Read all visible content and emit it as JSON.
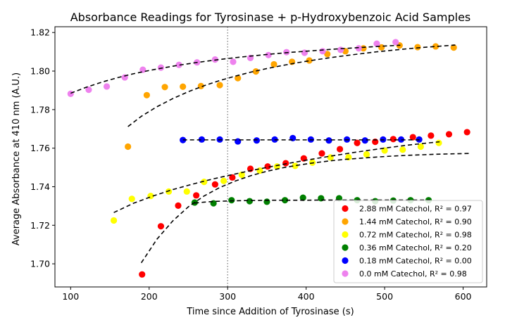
{
  "chart_data": {
    "type": "scatter",
    "title": "Absorbance Readings for Tyrosinase + p-Hydroxybenzoic Acid Samples",
    "xlabel": "Time since Addition of Tyrosinase (s)",
    "ylabel": "Average Absorbance at 410 nm (A.U.)",
    "xlim": [
      80,
      630
    ],
    "ylim": [
      1.688,
      1.823
    ],
    "xticks": [
      100,
      200,
      300,
      400,
      500,
      600
    ],
    "yticks": [
      1.7,
      1.72,
      1.74,
      1.76,
      1.78,
      1.8,
      1.82
    ],
    "xtick_labels": [
      "100",
      "200",
      "300",
      "400",
      "500",
      "600"
    ],
    "ytick_labels": [
      "1.70",
      "1.72",
      "1.74",
      "1.76",
      "1.78",
      "1.80",
      "1.82"
    ],
    "reference_line": {
      "x": 300,
      "style": "dotted",
      "color": "#7f7f7f"
    },
    "fit_style": {
      "color": "#000000",
      "dash": "dashed"
    },
    "legend_position": "lower right",
    "grid": false,
    "series": [
      {
        "name": "2.88 mM Catechol, R² = 0.97",
        "color": "#ff0000",
        "x": [
          191,
          215,
          237,
          260,
          284,
          306,
          329,
          351,
          374,
          397,
          420,
          443,
          465,
          488,
          511,
          536,
          559,
          582,
          605
        ],
        "y": [
          1.6945,
          1.7195,
          1.7302,
          1.7355,
          1.7412,
          1.7448,
          1.7493,
          1.7505,
          1.7522,
          1.7547,
          1.7573,
          1.7595,
          1.7627,
          1.7633,
          1.7647,
          1.7657,
          1.7665,
          1.7672,
          1.7683
        ],
        "fit": {
          "x": [
            190,
            210,
            230,
            250,
            270,
            290,
            310,
            330,
            350,
            370,
            390,
            410,
            430,
            450,
            470,
            490,
            510,
            530,
            550,
            570,
            590,
            610
          ],
          "y": [
            1.7005,
            1.7128,
            1.7222,
            1.7296,
            1.7352,
            1.7396,
            1.743,
            1.7458,
            1.748,
            1.7498,
            1.7512,
            1.7524,
            1.7534,
            1.7542,
            1.7548,
            1.7554,
            1.7559,
            1.7563,
            1.7566,
            1.7569,
            1.7571,
            1.7573
          ]
        }
      },
      {
        "name": "1.44 mM Catechol, R² = 0.90",
        "color": "#ffa500",
        "x": [
          173,
          197,
          220,
          243,
          266,
          290,
          313,
          336,
          359,
          382,
          404,
          427,
          450,
          473,
          496,
          519,
          542,
          565,
          588
        ],
        "y": [
          1.7608,
          1.7875,
          1.7917,
          1.7919,
          1.7922,
          1.7927,
          1.7963,
          1.7998,
          1.8035,
          1.8048,
          1.8055,
          1.8088,
          1.8103,
          1.8118,
          1.8123,
          1.8133,
          1.8124,
          1.8128,
          1.8122
        ],
        "fit": {
          "x": [
            173,
            190,
            210,
            230,
            250,
            270,
            290,
            310,
            330,
            350,
            370,
            390,
            410,
            430,
            450,
            470,
            490,
            510,
            530,
            550,
            570,
            590
          ],
          "y": [
            1.7712,
            1.7765,
            1.7815,
            1.7857,
            1.7893,
            1.7924,
            1.7951,
            1.7974,
            1.7995,
            1.8013,
            1.8029,
            1.8044,
            1.8057,
            1.8069,
            1.808,
            1.809,
            1.81,
            1.8108,
            1.8116,
            1.8123,
            1.8129,
            1.8135
          ]
        }
      },
      {
        "name": "0.72 mM Catechol, R² = 0.98",
        "color": "#ffff00",
        "x": [
          155,
          178,
          202,
          225,
          248,
          270,
          295,
          318,
          341,
          363,
          386,
          408,
          431,
          454,
          477,
          500,
          523,
          546,
          569
        ],
        "y": [
          1.7225,
          1.7337,
          1.7352,
          1.7375,
          1.7375,
          1.7425,
          1.743,
          1.7462,
          1.7484,
          1.7505,
          1.7508,
          1.7525,
          1.7552,
          1.7553,
          1.7568,
          1.7588,
          1.7592,
          1.7608,
          1.7627
        ],
        "fit": {
          "x": [
            155,
            180,
            205,
            230,
            255,
            280,
            305,
            330,
            355,
            380,
            405,
            430,
            455,
            480,
            505,
            530,
            555,
            570
          ],
          "y": [
            1.7266,
            1.7314,
            1.7352,
            1.7385,
            1.7413,
            1.7439,
            1.7462,
            1.7484,
            1.7504,
            1.7523,
            1.7541,
            1.7558,
            1.7574,
            1.7589,
            1.7603,
            1.7616,
            1.7627,
            1.7633
          ]
        }
      },
      {
        "name": "0.36 mM Catechol, R² = 0.20",
        "color": "#008000",
        "x": [
          258,
          282,
          305,
          328,
          350,
          373,
          396,
          419,
          442,
          465,
          488,
          511,
          533,
          556
        ],
        "y": [
          1.7318,
          1.7314,
          1.733,
          1.7325,
          1.7322,
          1.733,
          1.7343,
          1.734,
          1.734,
          1.733,
          1.7325,
          1.7328,
          1.733,
          1.733
        ],
        "fit": {
          "x": [
            258,
            270,
            285,
            300,
            320,
            340,
            360,
            380,
            400,
            420,
            440,
            460,
            480,
            500,
            520,
            540,
            558
          ],
          "y": [
            1.7315,
            1.732,
            1.7324,
            1.7326,
            1.7328,
            1.7329,
            1.733,
            1.733,
            1.733,
            1.7331,
            1.7331,
            1.7331,
            1.7331,
            1.7331,
            1.7331,
            1.7331,
            1.7331
          ]
        }
      },
      {
        "name": "0.18 mM Catechol, R² = 0.00",
        "color": "#0000ff",
        "x": [
          243,
          267,
          290,
          313,
          337,
          360,
          383,
          406,
          429,
          452,
          475,
          498,
          521,
          544
        ],
        "y": [
          1.7642,
          1.7645,
          1.7645,
          1.7635,
          1.764,
          1.7645,
          1.7652,
          1.7645,
          1.764,
          1.7645,
          1.764,
          1.7645,
          1.7645,
          1.7645
        ],
        "fit": {
          "x": [
            243,
            280,
            320,
            360,
            400,
            440,
            480,
            520,
            546
          ],
          "y": [
            1.7643,
            1.7643,
            1.7643,
            1.7643,
            1.7643,
            1.7643,
            1.7643,
            1.7643,
            1.7643
          ]
        }
      },
      {
        "name": "0.0 mM Catechol, R² = 0.98",
        "color": "#ee82ee",
        "x": [
          100,
          123,
          146,
          169,
          192,
          215,
          238,
          261,
          284,
          307,
          329,
          352,
          375,
          398,
          421,
          444,
          467,
          490,
          514
        ],
        "y": [
          1.7882,
          1.7903,
          1.792,
          1.7967,
          1.8007,
          1.8018,
          1.8032,
          1.8045,
          1.806,
          1.8048,
          1.8068,
          1.8083,
          1.8098,
          1.8095,
          1.8103,
          1.811,
          1.8118,
          1.8142,
          1.815
        ],
        "fit": {
          "x": [
            100,
            120,
            140,
            160,
            180,
            200,
            220,
            240,
            260,
            280,
            300,
            320,
            340,
            360,
            380,
            400,
            420,
            440,
            460,
            480,
            500,
            520
          ],
          "y": [
            1.7885,
            1.7916,
            1.7943,
            1.7966,
            1.7986,
            1.8003,
            1.8018,
            1.8032,
            1.8044,
            1.8055,
            1.8065,
            1.8074,
            1.8082,
            1.809,
            1.8097,
            1.8103,
            1.8109,
            1.8115,
            1.812,
            1.8125,
            1.813,
            1.8134
          ]
        }
      }
    ]
  }
}
